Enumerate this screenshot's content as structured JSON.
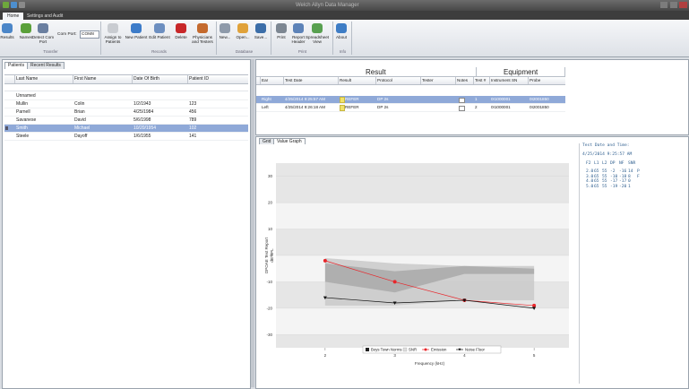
{
  "window": {
    "title": "Welch Allyn Data Manager"
  },
  "tabs": [
    "Home",
    "Settings and Audit"
  ],
  "ribbon": {
    "groups": [
      {
        "label": "Transfer",
        "buttons": [
          "Results",
          "Names",
          "Detect Com Port"
        ]
      },
      {
        "label": "Records",
        "buttons": [
          "Assign to Patients",
          "New Patient",
          "Edit Patient",
          "Delete",
          "Physicians and Testers"
        ]
      },
      {
        "label": "Database",
        "buttons": [
          "New...",
          "Open...",
          "Save..."
        ]
      },
      {
        "label": "Print",
        "buttons": [
          "Print",
          "Report Header",
          "Spreadsheet View"
        ]
      },
      {
        "label": "Info",
        "buttons": [
          "About"
        ]
      }
    ],
    "com_port_label": "Com Port:",
    "com_port_value": "COM8"
  },
  "patients": {
    "tabs": [
      "Patients",
      "Recent Results"
    ],
    "columns": [
      "Last Name",
      "First Name",
      "Date Of Birth",
      "Patient ID"
    ],
    "rows": [
      [
        "Unnamed"
      ],
      [
        "Mullin",
        "Colin",
        "1/2/1943",
        "123"
      ],
      [
        "Parnell",
        "Brian",
        "4/25/1984",
        "456"
      ],
      [
        "Savanese",
        "David",
        "5/6/1998",
        "789"
      ],
      [
        "Smith",
        "Michael",
        "10/20/1954",
        "102"
      ],
      [
        "Steele",
        "Dayoff",
        "1/6/1955",
        "141"
      ]
    ],
    "selected_row": 4
  },
  "results": {
    "group_headers": [
      "Result",
      "Equipment"
    ],
    "columns": [
      "Ear",
      "Test Date",
      "Result",
      "Protocol",
      "Tester",
      "Notes",
      "Test #",
      "Instrument SN",
      "Probe"
    ],
    "rows": [
      {
        "ear": "Right",
        "test_date": "4/25/2014 9:25:57 AM",
        "result": "REFER",
        "protocol": "DP 2s",
        "test_no": "1",
        "instrument_sn": "0I1000001",
        "probe": "0I2001850"
      },
      {
        "ear": "Left",
        "test_date": "4/25/2014 9:26:18 AM",
        "result": "REFER",
        "protocol": "DP 2s",
        "test_no": "2",
        "instrument_sn": "0I1000001",
        "probe": "0I2001850"
      }
    ],
    "selected_row": 0
  },
  "graph_tabs": [
    "Grid",
    "Value Graph"
  ],
  "details": {
    "heading": "Test Date and Time:",
    "datetime": "4/25/2014 9:25:57 AM",
    "columns": [
      "F2",
      "L1",
      "L2",
      "DP",
      "NF",
      "SNR"
    ],
    "rows": [
      [
        "2.0",
        "65",
        "55",
        "-2",
        "-16",
        "14",
        "P"
      ],
      [
        "3.0",
        "65",
        "55",
        "-10",
        "-18",
        "8",
        "F"
      ],
      [
        "4.0",
        "65",
        "55",
        "-17",
        "-17",
        "0"
      ],
      [
        "5.0",
        "65",
        "55",
        "-19",
        "-20",
        "1"
      ]
    ]
  },
  "chart_data": {
    "type": "line",
    "y_label": "DPOAE Test Report",
    "y_unit": "dB SPL",
    "x_label": "Frequency (kHz)",
    "x": [
      2,
      3,
      4,
      5
    ],
    "xlim": [
      1.5,
      5.5
    ],
    "xticks": [
      2,
      3,
      4,
      5
    ],
    "ylim": [
      -35,
      35
    ],
    "yticks": [
      30,
      20,
      10,
      0,
      -10,
      -20,
      -30
    ],
    "norms": {
      "name": "Boys Town Norms",
      "bands": [
        {
          "color": "#c9c9c9",
          "upper": [
            -1,
            -3,
            -4,
            -4
          ],
          "lower": [
            -19,
            -19,
            -17,
            -17
          ]
        },
        {
          "color": "#a9a9a9",
          "upper": [
            -3,
            -6,
            -4,
            -5
          ],
          "lower": [
            -10,
            -14,
            -7,
            -7
          ]
        }
      ]
    },
    "snr_legend": "SNR",
    "series": [
      {
        "name": "Emission",
        "color": "#e8262b",
        "marker": "circle",
        "values": [
          -2,
          -10,
          -17,
          -19
        ]
      },
      {
        "name": "Noise Floor",
        "color": "#111111",
        "marker": "triangle",
        "values": [
          -16,
          -18,
          -17,
          -20
        ]
      }
    ]
  }
}
